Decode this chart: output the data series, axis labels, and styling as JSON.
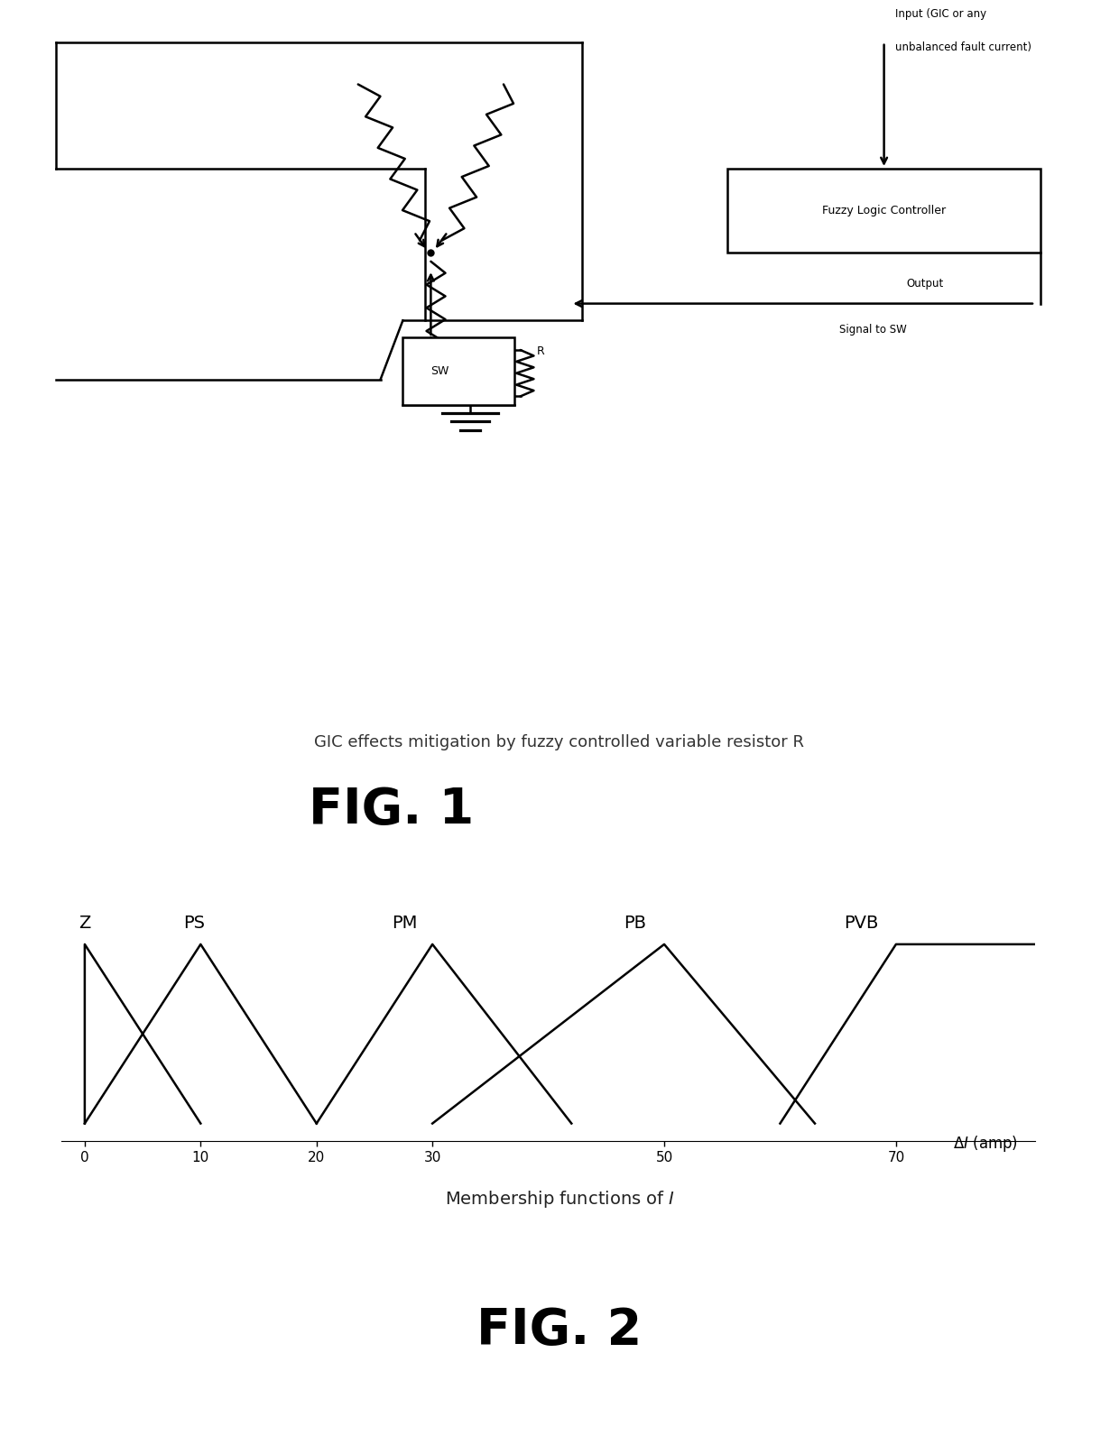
{
  "fig1_caption": "GIC effects mitigation by fuzzy controlled variable resistor R",
  "fig1_label": "FIG. 1",
  "fig2_label": "FIG. 2",
  "fig2_caption_plain": "Membership functions of ",
  "fig2_caption_italic": "I",
  "membership_labels": [
    "Z",
    "PS",
    "PM",
    "PB",
    "PVB"
  ],
  "x_ticks": [
    0,
    10,
    20,
    30,
    50,
    70
  ],
  "x_label_delta": "Δ",
  "x_label_I": "I",
  "x_label_rest": " (amp)",
  "x_max": 82,
  "background_color": "#ffffff",
  "line_color": "#000000",
  "fig_label_fontsize": 40,
  "caption_fontsize": 13,
  "membership_label_fontsize": 14
}
